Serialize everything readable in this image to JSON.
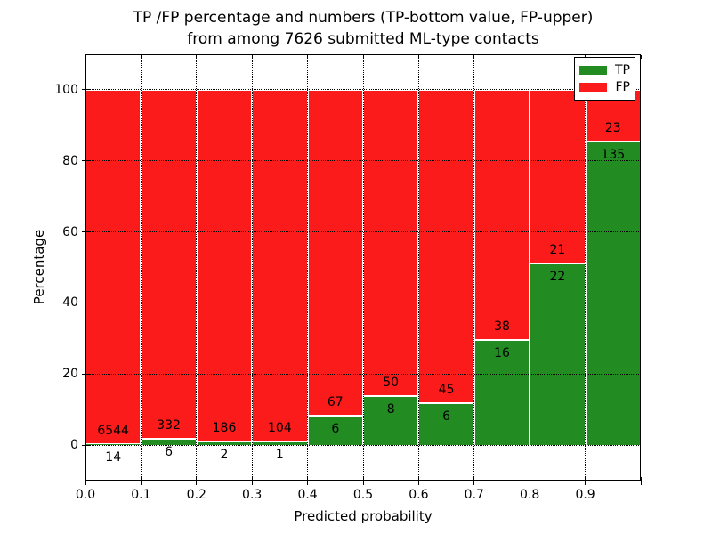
{
  "figure_title": {
    "line1": "TP /FP percentage and numbers (TP-bottom value, FP-upper)",
    "line2": "from among 7626 submitted ML-type contacts"
  },
  "chart_data": {
    "type": "bar",
    "stacked": true,
    "orientation": "vertical",
    "title": "TP /FP percentage and numbers (TP-bottom value, FP-upper) from among 7626 submitted ML-type contacts",
    "xlabel": "Predicted probability",
    "ylabel": "Percentage",
    "total_submitted_contacts": 7626,
    "bin_edges": [
      0.0,
      0.1,
      0.2,
      0.3,
      0.4,
      0.5,
      0.6,
      0.7,
      0.8,
      0.9,
      1.0
    ],
    "series": [
      {
        "name": "TP",
        "color": "#228b22",
        "position": "bottom",
        "counts": [
          14,
          6,
          2,
          1,
          6,
          8,
          6,
          16,
          22,
          135
        ]
      },
      {
        "name": "FP",
        "color": "#fb1b1b",
        "position": "top",
        "counts": [
          6544,
          332,
          186,
          104,
          67,
          50,
          45,
          38,
          21,
          23
        ]
      }
    ],
    "tp_percent_of_bin": [
      0.21,
      1.78,
      1.06,
      0.95,
      8.22,
      13.79,
      11.76,
      29.63,
      51.16,
      85.44
    ],
    "bars_sum_to_percent": 100,
    "xticks": {
      "values": [
        0.0,
        0.1,
        0.2,
        0.3,
        0.4,
        0.5,
        0.6,
        0.7,
        0.8,
        0.9
      ],
      "labels": [
        "0.0",
        "0.1",
        "0.2",
        "0.3",
        "0.4",
        "0.5",
        "0.6",
        "0.7",
        "0.8",
        "0.9"
      ]
    },
    "yticks": {
      "values": [
        0,
        20,
        40,
        60,
        80,
        100
      ],
      "labels": [
        "0",
        "20",
        "40",
        "60",
        "80",
        "100"
      ]
    },
    "xlim": [
      0.0,
      1.0
    ],
    "ylim": [
      -10,
      110
    ],
    "grid": {
      "style": "dotted",
      "color": "#000000"
    },
    "bar_edge_color": "#ffffff",
    "background": "#ffffff",
    "legend": {
      "position": "upper right",
      "entries": [
        {
          "label": "TP",
          "color": "#228b22"
        },
        {
          "label": "FP",
          "color": "#fb1b1b"
        }
      ]
    }
  }
}
